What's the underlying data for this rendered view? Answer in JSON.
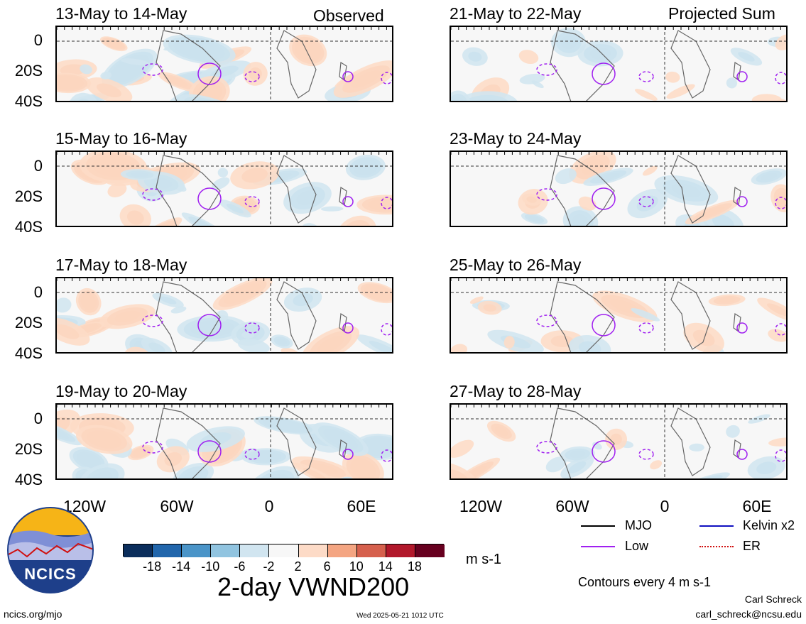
{
  "panels_left": [
    {
      "title": "13-May to 14-May"
    },
    {
      "title": "15-May to 16-May"
    },
    {
      "title": "17-May to 18-May"
    },
    {
      "title": "19-May to 20-May"
    }
  ],
  "panels_right": [
    {
      "title": "21-May to 22-May"
    },
    {
      "title": "23-May to 24-May"
    },
    {
      "title": "25-May to 26-May"
    },
    {
      "title": "27-May to 28-May"
    }
  ],
  "column_labels": {
    "left": "Observed",
    "right": "Projected Sum"
  },
  "lat_labels": [
    "0",
    "20S",
    "40S"
  ],
  "lon_labels": [
    "120W",
    "60W",
    "0",
    "60E"
  ],
  "colorbar": {
    "colors": [
      "#0b2e5c",
      "#2166ac",
      "#4a94c8",
      "#91c4e0",
      "#d1e5f0",
      "#f7f7f7",
      "#fddbc7",
      "#f4a582",
      "#d6604d",
      "#b2182b",
      "#67001f"
    ],
    "ticks": [
      "-18",
      "-14",
      "-10",
      "-6",
      "-2",
      "2",
      "6",
      "10",
      "14",
      "18"
    ],
    "unit": "m s-1"
  },
  "legend": {
    "items": [
      {
        "label": "MJO",
        "color": "#000000"
      },
      {
        "label": "Kelvin x2",
        "color": "#1010c0"
      },
      {
        "label": "Low",
        "color": "#a020f0"
      },
      {
        "label": "ER",
        "color": "#d01010"
      }
    ],
    "contours_note": "Contours every 4 m s-1"
  },
  "logo_text": "NCICS",
  "main_title": "2-day VWND200",
  "footer": {
    "url": "ncics.org/mjo",
    "timestamp": "Wed 2025-05-21 1012 UTC",
    "author": "Carl Schreck",
    "email": "carl_schreck@ncsu.edu"
  }
}
